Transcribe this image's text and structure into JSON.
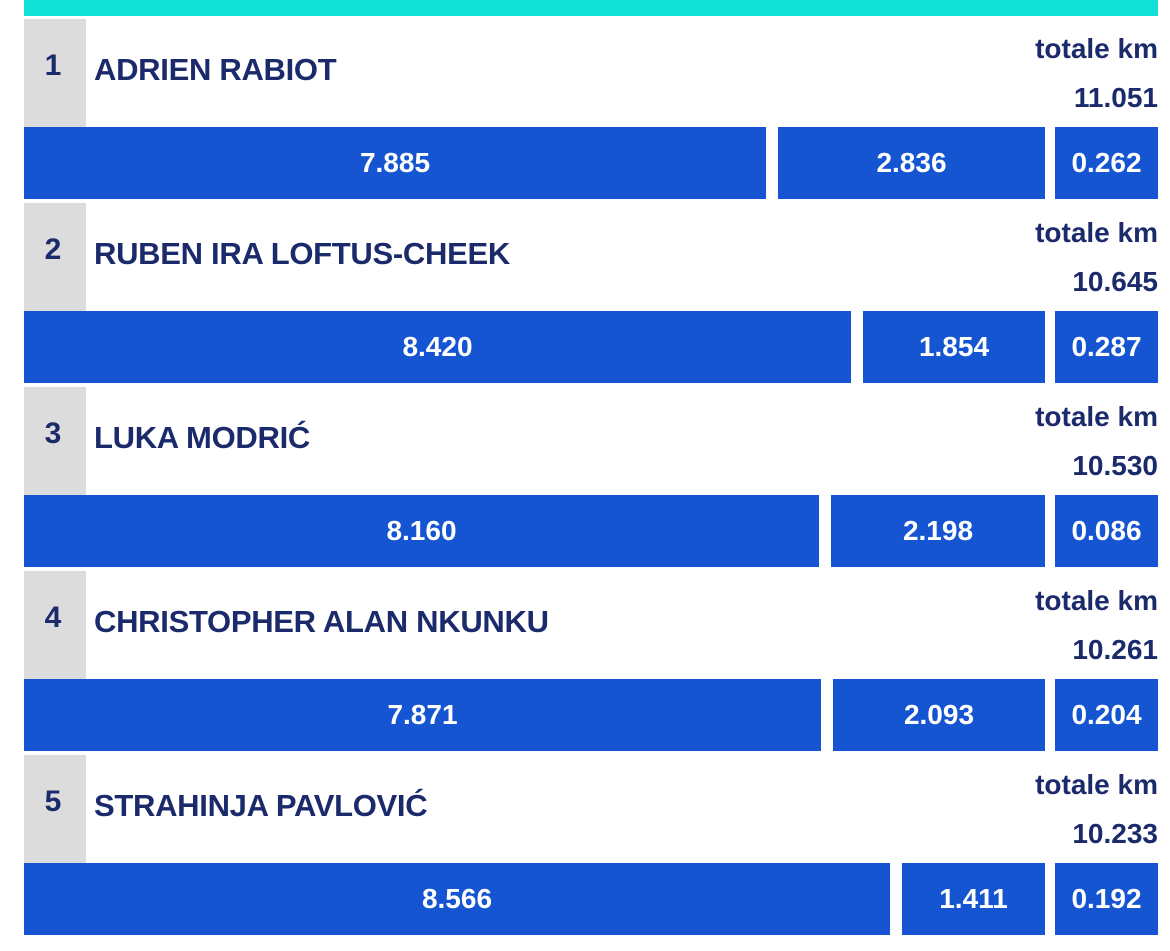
{
  "colors": {
    "accent_band": "#11e0d6",
    "bar": "#1555d1",
    "text": "#1b2a6b",
    "rank_bg": "#dcdcdc"
  },
  "chart_data": {
    "type": "bar",
    "total_label": "totale km",
    "players": [
      {
        "rank": "1",
        "name": "ADRIEN RABIOT",
        "total": "11.051",
        "segments": [
          "7.885",
          "2.836",
          "0.262"
        ]
      },
      {
        "rank": "2",
        "name": "RUBEN IRA LOFTUS-CHEEK",
        "total": "10.645",
        "segments": [
          "8.420",
          "1.854",
          "0.287"
        ]
      },
      {
        "rank": "3",
        "name": "LUKA MODRIĆ",
        "total": "10.530",
        "segments": [
          "8.160",
          "2.198",
          "0.086"
        ]
      },
      {
        "rank": "4",
        "name": "CHRISTOPHER ALAN NKUNKU",
        "total": "10.261",
        "segments": [
          "7.871",
          "2.093",
          "0.204"
        ]
      },
      {
        "rank": "5",
        "name": "STRAHINJA PAVLOVIĆ",
        "total": "10.233",
        "segments": [
          "8.566",
          "1.411",
          "0.192"
        ]
      }
    ]
  }
}
